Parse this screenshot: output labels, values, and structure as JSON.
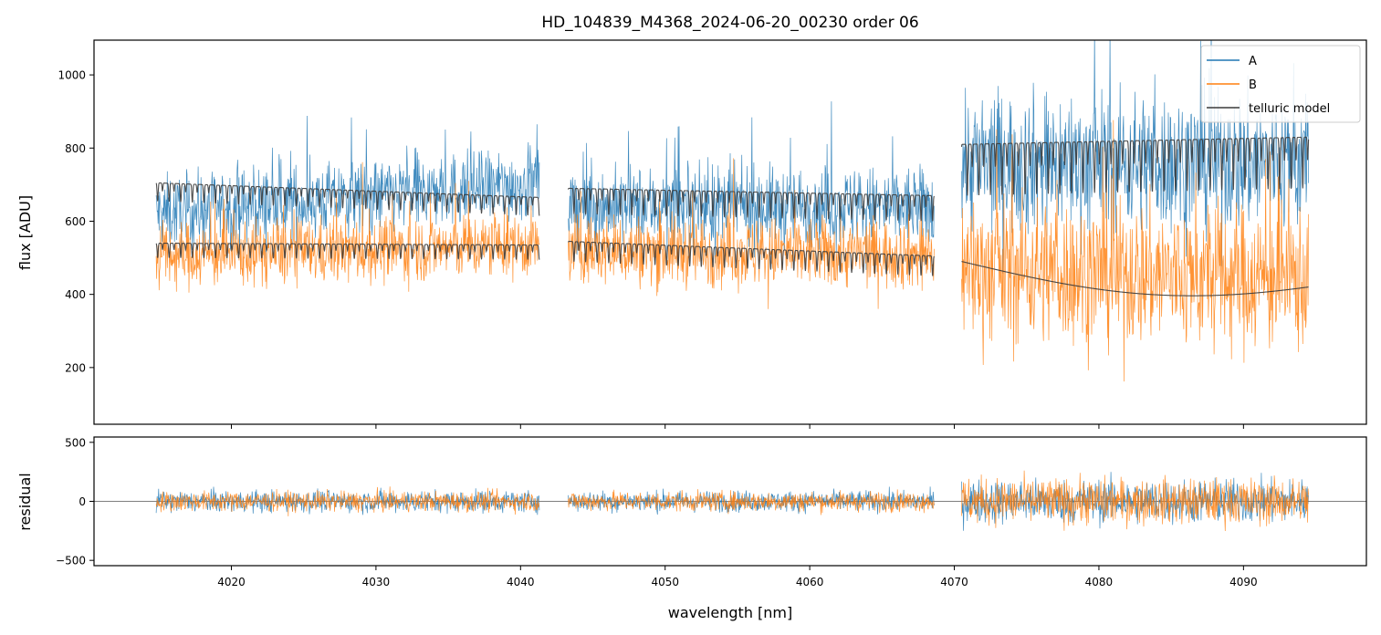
{
  "chart_data": {
    "type": "line",
    "title": "HD_104839_M4368_2024-06-20_00230  order 06",
    "xlabel": "wavelength [nm]",
    "legend": {
      "placement": "top-right",
      "entries": [
        "A",
        "B",
        "telluric model"
      ]
    },
    "colors": {
      "A": "#1f77b4",
      "B": "#ff7f0e",
      "telluric model": "#3a3a3a"
    },
    "xlim": [
      4010.5,
      4098.5
    ],
    "x_ticks": [
      4020,
      4030,
      4040,
      4050,
      4060,
      4070,
      4080,
      4090
    ],
    "x_tick_labels": [
      "4020",
      "4030",
      "4040",
      "4050",
      "4060",
      "4070",
      "4080",
      "4090"
    ],
    "segments": [
      [
        4014.8,
        4041.3
      ],
      [
        4043.3,
        4068.6
      ],
      [
        4070.5,
        4094.5
      ]
    ],
    "panels": [
      {
        "name": "flux",
        "ylabel": "flux [ADU]",
        "ylim": [
          45,
          1095
        ],
        "y_ticks": [
          200,
          400,
          600,
          800,
          1000
        ],
        "y_tick_labels": [
          "200",
          "400",
          "600",
          "800",
          "1000"
        ],
        "series": [
          {
            "name": "A",
            "style": "noisy spectrum",
            "segment_levels": [
              [
                620,
                705
              ],
              [
                640,
                640
              ],
              [
                760,
                760
              ]
            ],
            "segment_noise": [
              130,
              140,
              250
            ]
          },
          {
            "name": "B",
            "style": "noisy spectrum",
            "segment_levels": [
              [
                505,
                535
              ],
              [
                520,
                510
              ],
              [
                470,
                440
              ]
            ],
            "segment_noise": [
              115,
              125,
              260
            ]
          },
          {
            "name": "telluric model",
            "style": "model A",
            "segment_levels": [
              [
                705,
                665
              ],
              [
                690,
                670
              ],
              [
                810,
                830
              ]
            ],
            "segment_line_depth": [
              50,
              70,
              140
            ],
            "lines_per_nm": 1.25
          },
          {
            "name": "telluric model",
            "style": "model B",
            "legend": false,
            "segment_levels": [
              [
                540,
                535
              ],
              [
                545,
                505
              ],
              [
                490,
                452
              ]
            ],
            "segment_line_depth": [
              40,
              55,
              0
            ],
            "lines_per_nm": 1.25
          }
        ]
      },
      {
        "name": "residual",
        "ylabel": "residual",
        "ylim": [
          -545,
          545
        ],
        "y_ticks": [
          -500,
          0,
          500
        ],
        "y_tick_labels": [
          "−500",
          "0",
          "500"
        ],
        "zero_line": true,
        "series": [
          {
            "name": "A",
            "segment_noise": [
              120,
              115,
              240
            ]
          },
          {
            "name": "B",
            "segment_noise": [
              110,
              110,
              250
            ]
          }
        ]
      }
    ]
  }
}
